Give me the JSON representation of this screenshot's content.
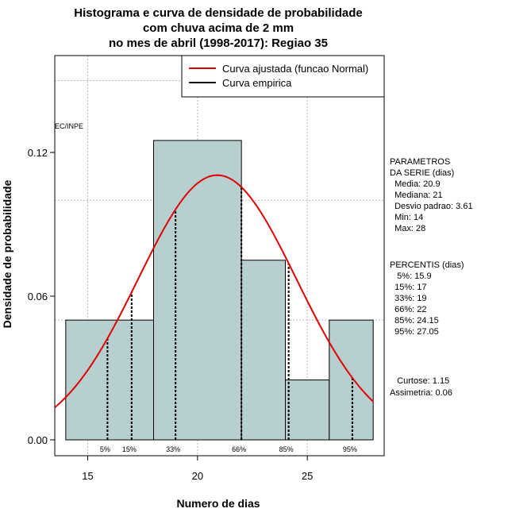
{
  "chart_data": {
    "type": "bar",
    "title_lines": [
      "Histograma e curva de densidade de probabilidade",
      "com chuva acima de 2 mm",
      "no mes de abril (1998-2017): Regiao 35"
    ],
    "xlabel": "Numero de dias",
    "ylabel": "Densidade de probabilidade",
    "xlim": [
      13.5,
      28.5
    ],
    "ylim": [
      0,
      0.155
    ],
    "x_ticks": [
      15,
      20,
      25
    ],
    "y_ticks": [
      0.0,
      0.06,
      0.12
    ],
    "x_tick_labels": [
      "15",
      "20",
      "25"
    ],
    "y_tick_labels": [
      "0.00",
      "0.06",
      "0.12"
    ],
    "grid_x": [
      15,
      20,
      25
    ],
    "grid_y": [
      0.05,
      0.1,
      0.15
    ],
    "bins": [
      {
        "x0": 14,
        "x1": 18,
        "density": 0.05
      },
      {
        "x0": 18,
        "x1": 22,
        "density": 0.125
      },
      {
        "x0": 22,
        "x1": 24,
        "density": 0.075
      },
      {
        "x0": 24,
        "x1": 26,
        "density": 0.025
      },
      {
        "x0": 26,
        "x1": 28,
        "density": 0.05
      }
    ],
    "normal_fit": {
      "mean": 20.9,
      "sd": 3.61,
      "name": "Curva ajustada (funcao Normal)",
      "color": "#e00000"
    },
    "empirical": {
      "name": "Curva empirica",
      "color": "#000000"
    },
    "legend_position": "top-right",
    "percentile_markers": [
      {
        "label": "5%",
        "x": 15.9
      },
      {
        "label": "15%",
        "x": 17
      },
      {
        "label": "33%",
        "x": 19
      },
      {
        "label": "66%",
        "x": 22
      },
      {
        "label": "85%",
        "x": 24.15
      },
      {
        "label": "95%",
        "x": 27.05
      }
    ],
    "credit": "EC/INPE",
    "bar_color": "#b7cfcf"
  },
  "side_panel": {
    "params_lines": [
      "PARAMETROS",
      "DA SERIE (dias)",
      "  Media: 20.9",
      "  Mediana: 21",
      "  Desvio padrao: 3.61",
      "  Min: 14",
      "  Max: 28"
    ],
    "percentis_lines": [
      "PERCENTIS (dias)",
      "   5%: 15.9",
      "  15%: 17",
      "  33%: 19",
      "  66%: 22",
      "  85%: 24.15",
      "  95%: 27.05"
    ],
    "stats_lines": [
      "   Curtose: 1.15",
      "Assimetria: 0.06"
    ]
  }
}
